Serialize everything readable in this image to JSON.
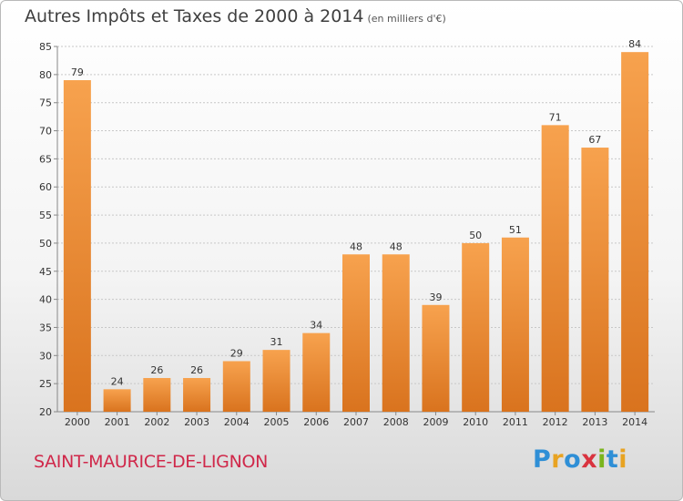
{
  "title": "Autres Impôts et Taxes de 2000 à 2014",
  "subtitle": "(en milliers d'€)",
  "commune": "SAINT-MAURICE-DE-LIGNON",
  "logo": {
    "text": "Proxiti",
    "letters": [
      {
        "ch": "P",
        "color": "#2f8fd6"
      },
      {
        "ch": "r",
        "color": "#e8a322"
      },
      {
        "ch": "o",
        "color": "#2f8fd6"
      },
      {
        "ch": "x",
        "color": "#d9333f"
      },
      {
        "ch": "i",
        "color": "#7ab51d"
      },
      {
        "ch": "t",
        "color": "#2f8fd6"
      },
      {
        "ch": "i",
        "color": "#e8a322"
      }
    ]
  },
  "colors": {
    "bar_top": "#f7a24e",
    "bar_bottom": "#d9731e",
    "grid": "#c8c8c8"
  },
  "chart_data": {
    "type": "bar",
    "title": "Autres Impôts et Taxes de 2000 à 2014",
    "subtitle": "(en milliers d'€)",
    "categories": [
      "2000",
      "2001",
      "2002",
      "2003",
      "2004",
      "2005",
      "2006",
      "2007",
      "2008",
      "2009",
      "2010",
      "2011",
      "2012",
      "2013",
      "2014"
    ],
    "values": [
      79,
      24,
      26,
      26,
      29,
      31,
      34,
      48,
      48,
      39,
      50,
      51,
      71,
      67,
      84
    ],
    "labels": [
      "79",
      "24",
      "26",
      "26",
      "29",
      "31",
      "34",
      "48",
      "48",
      "39",
      "50",
      "51",
      "71",
      "67",
      "84"
    ],
    "ylim": [
      20,
      85
    ],
    "yticks": [
      20,
      25,
      30,
      35,
      40,
      45,
      50,
      55,
      60,
      65,
      70,
      75,
      80,
      85
    ],
    "ytick_labels": [
      "20",
      "25",
      "30",
      "35",
      "40",
      "45",
      "50",
      "55",
      "60",
      "65",
      "70",
      "75",
      "80",
      "85"
    ],
    "grid": true
  }
}
